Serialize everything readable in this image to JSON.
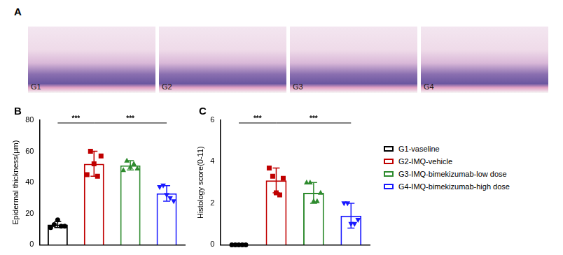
{
  "panel_a": {
    "title": "A",
    "images": [
      "G1",
      "G2",
      "G3",
      "G4"
    ]
  },
  "chart_data": [
    {
      "type": "bar",
      "title": "B",
      "y_label": "Epidermal thickness(μm)",
      "ylim": [
        0,
        80
      ],
      "yticks": [
        0,
        20,
        40,
        60,
        80
      ],
      "tick_labels": "y",
      "grid": false,
      "series": [
        {
          "name": "G1-vaseline",
          "color": "#000000",
          "marker": "circle",
          "values": [
            13
          ],
          "error": [
            2
          ],
          "points": [
            11,
            13,
            16,
            12,
            12
          ]
        },
        {
          "name": "G2-IMQ-vehicle",
          "color": "#c00000",
          "marker": "square",
          "values": [
            52
          ],
          "error": [
            8
          ],
          "points": [
            45,
            60,
            52,
            44,
            57
          ]
        },
        {
          "name": "G3-IMQ-bimekizumab-low dose",
          "color": "#2e8b2e",
          "marker": "triangle",
          "values": [
            51
          ],
          "error": [
            3
          ],
          "points": [
            48,
            54,
            50,
            52,
            49
          ]
        },
        {
          "name": "G4-IMQ-bimekizumab-high dose",
          "color": "#1a1aff",
          "marker": "triangle-down",
          "values": [
            33
          ],
          "error": [
            5
          ],
          "points": [
            37,
            38,
            32,
            30,
            28
          ]
        }
      ],
      "annotations": [
        {
          "text": "***",
          "from": "G1-vaseline",
          "to": "G2-IMQ-vehicle"
        },
        {
          "text": "***",
          "from": "G2-IMQ-vehicle",
          "to": "G4-IMQ-bimekizumab-high dose"
        }
      ]
    },
    {
      "type": "bar",
      "title": "C",
      "y_label": "Histology score(0-11)",
      "ylim": [
        0,
        6
      ],
      "yticks": [
        0,
        2,
        4,
        6
      ],
      "tick_labels": "y",
      "grid": false,
      "legend": "right",
      "series": [
        {
          "name": "G1-vaseline",
          "color": "#000000",
          "marker": "circle",
          "values": [
            0
          ],
          "error": [
            0
          ],
          "points": [
            0,
            0,
            0,
            0,
            0
          ]
        },
        {
          "name": "G2-IMQ-vehicle",
          "color": "#c00000",
          "marker": "square",
          "values": [
            3.1
          ],
          "error": [
            0.6
          ],
          "points": [
            3.7,
            3.3,
            2.5,
            2.4,
            3.2
          ]
        },
        {
          "name": "G3-IMQ-bimekizumab-low dose",
          "color": "#2e8b2e",
          "marker": "triangle",
          "values": [
            2.5
          ],
          "error": [
            0.5
          ],
          "points": [
            3.0,
            3.0,
            2.1,
            2.1,
            2.5
          ]
        },
        {
          "name": "G4-IMQ-bimekizumab-high dose",
          "color": "#1a1aff",
          "marker": "triangle-down",
          "values": [
            1.4
          ],
          "error": [
            0.6
          ],
          "points": [
            2.0,
            2.0,
            1.0,
            1.0,
            1.2
          ]
        }
      ],
      "annotations": [
        {
          "text": "***",
          "from": "G1-vaseline",
          "to": "G2-IMQ-vehicle"
        },
        {
          "text": "***",
          "from": "G2-IMQ-vehicle",
          "to": "G4-IMQ-bimekizumab-high dose"
        }
      ]
    }
  ]
}
